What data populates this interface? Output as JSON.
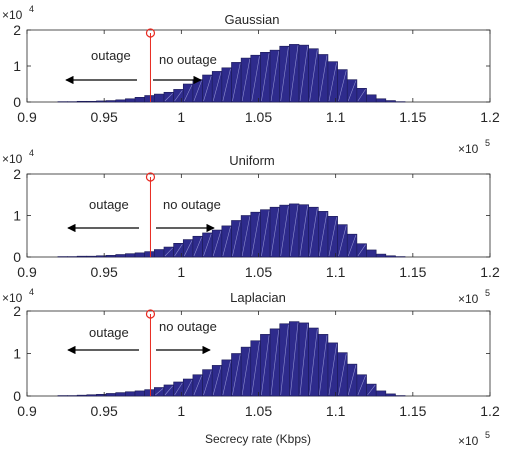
{
  "chart_data": [
    {
      "type": "bar",
      "title": "Gaussian",
      "xlabel": "",
      "ylabel": "",
      "xlim": [
        0.9,
        1.2
      ],
      "ylim": [
        0,
        2
      ],
      "x_ticks": [
        "0.9",
        "0.95",
        "1",
        "1.05",
        "1.1",
        "1.15",
        "1.2"
      ],
      "y_ticks": [
        "0",
        "1",
        "2"
      ],
      "x_exponent": {
        "base": "×10",
        "power": "5"
      },
      "y_exponent": {
        "base": "×10",
        "power": "4"
      },
      "bin_width": 0.00625,
      "bin_starts": [
        0.92,
        0.92625,
        0.9325,
        0.93875,
        0.945,
        0.95125,
        0.9575,
        0.96375,
        0.97,
        0.97625,
        0.9825,
        0.98875,
        0.995,
        1.00125,
        1.0075,
        1.01375,
        1.02,
        1.02625,
        1.0325,
        1.03875,
        1.045,
        1.05125,
        1.0575,
        1.06375,
        1.07,
        1.07625,
        1.0825,
        1.08875,
        1.095,
        1.10125,
        1.1075,
        1.11375,
        1.12,
        1.12625,
        1.1325,
        1.13875
      ],
      "values": [
        0.01,
        0.01,
        0.02,
        0.02,
        0.03,
        0.04,
        0.06,
        0.09,
        0.13,
        0.18,
        0.22,
        0.27,
        0.35,
        0.5,
        0.62,
        0.75,
        0.85,
        0.95,
        1.1,
        1.22,
        1.3,
        1.38,
        1.44,
        1.55,
        1.6,
        1.58,
        1.48,
        1.32,
        1.12,
        0.9,
        0.62,
        0.38,
        0.2,
        0.09,
        0.04,
        0.01
      ],
      "threshold_x": 0.98,
      "annotations": {
        "left": "outage",
        "right": "no outage"
      }
    },
    {
      "type": "bar",
      "title": "Uniform",
      "xlabel": "",
      "ylabel": "",
      "xlim": [
        0.9,
        1.2
      ],
      "ylim": [
        0,
        2
      ],
      "x_ticks": [
        "0.9",
        "0.95",
        "1",
        "1.05",
        "1.1",
        "1.15",
        "1.2"
      ],
      "y_ticks": [
        "0",
        "1",
        "2"
      ],
      "x_exponent": {
        "base": "×10",
        "power": "5"
      },
      "y_exponent": {
        "base": "×10",
        "power": "4"
      },
      "bin_width": 0.00625,
      "bin_starts": [
        0.92,
        0.92625,
        0.9325,
        0.93875,
        0.945,
        0.95125,
        0.9575,
        0.96375,
        0.97,
        0.97625,
        0.9825,
        0.98875,
        0.995,
        1.00125,
        1.0075,
        1.01375,
        1.02,
        1.02625,
        1.0325,
        1.03875,
        1.045,
        1.05125,
        1.0575,
        1.06375,
        1.07,
        1.07625,
        1.0825,
        1.08875,
        1.095,
        1.10125,
        1.1075,
        1.11375,
        1.12,
        1.12625,
        1.1325,
        1.13875
      ],
      "values": [
        0.01,
        0.01,
        0.02,
        0.02,
        0.03,
        0.04,
        0.06,
        0.08,
        0.1,
        0.13,
        0.18,
        0.24,
        0.33,
        0.42,
        0.5,
        0.58,
        0.65,
        0.75,
        0.88,
        1.0,
        1.08,
        1.14,
        1.2,
        1.25,
        1.28,
        1.26,
        1.2,
        1.1,
        0.98,
        0.78,
        0.55,
        0.32,
        0.17,
        0.07,
        0.03,
        0.01
      ],
      "threshold_x": 0.98,
      "annotations": {
        "left": "outage",
        "right": "no outage"
      }
    },
    {
      "type": "bar",
      "title": "Laplacian",
      "xlabel": "Secrecy rate (Kbps)",
      "ylabel": "",
      "xlim": [
        0.9,
        1.2
      ],
      "ylim": [
        0,
        2
      ],
      "x_ticks": [
        "0.9",
        "0.95",
        "1",
        "1.05",
        "1.1",
        "1.15",
        "1.2"
      ],
      "y_ticks": [
        "0",
        "1",
        "2"
      ],
      "x_exponent": {
        "base": "×10",
        "power": "5"
      },
      "y_exponent": {
        "base": "×10",
        "power": "4"
      },
      "bin_width": 0.00625,
      "bin_starts": [
        0.92,
        0.92625,
        0.9325,
        0.93875,
        0.945,
        0.95125,
        0.9575,
        0.96375,
        0.97,
        0.97625,
        0.9825,
        0.98875,
        0.995,
        1.00125,
        1.0075,
        1.01375,
        1.02,
        1.02625,
        1.0325,
        1.03875,
        1.045,
        1.05125,
        1.0575,
        1.06375,
        1.07,
        1.07625,
        1.0825,
        1.08875,
        1.095,
        1.10125,
        1.1075,
        1.11375,
        1.12,
        1.12625,
        1.1325,
        1.13875
      ],
      "values": [
        0.01,
        0.01,
        0.02,
        0.03,
        0.04,
        0.06,
        0.08,
        0.1,
        0.12,
        0.15,
        0.2,
        0.26,
        0.33,
        0.4,
        0.5,
        0.62,
        0.72,
        0.85,
        1.0,
        1.15,
        1.3,
        1.45,
        1.58,
        1.7,
        1.75,
        1.72,
        1.6,
        1.45,
        1.25,
        1.02,
        0.75,
        0.5,
        0.28,
        0.12,
        0.05,
        0.01
      ],
      "threshold_x": 0.98,
      "annotations": {
        "left": "outage",
        "right": "no outage"
      }
    }
  ],
  "colors": {
    "bar_fill": "#2e2b8c",
    "bar_edge": "#1b1a55",
    "bar_hatch": "#8f8fd0",
    "threshold": "#e8281f",
    "axis": "#262626",
    "arrow": "#000000"
  }
}
